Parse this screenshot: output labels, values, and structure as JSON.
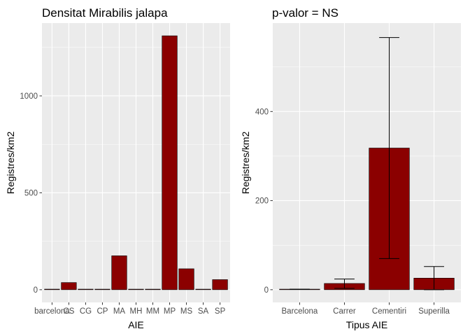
{
  "chart_data": [
    {
      "type": "bar",
      "title": "Densitat Mirabilis jalapa",
      "xlabel": "AIE",
      "ylabel": "Registres/km2",
      "ylim": [
        0,
        1310
      ],
      "yticks": [
        0,
        500,
        1000
      ],
      "ytick_labels": [
        "0",
        "500",
        "1000"
      ],
      "categories": [
        "barcelona",
        "CS",
        "CG",
        "CP",
        "MA",
        "MH",
        "MM",
        "MP",
        "MS",
        "SA",
        "SP"
      ],
      "category_labels": [
        "barcelona",
        "CS",
        "CG",
        "CP",
        "MA",
        "MH",
        "MM",
        "MP",
        "MS",
        "SA",
        "SP"
      ],
      "values": [
        3,
        37,
        3,
        1,
        175,
        0,
        0,
        1310,
        108,
        0,
        52
      ],
      "grid": true,
      "bar_color": "#8b0000"
    },
    {
      "type": "bar",
      "title": "p-valor = NS",
      "xlabel": "Tipus AIE",
      "ylabel": "Registres/km2",
      "ylim": [
        0,
        570
      ],
      "yticks": [
        0,
        200,
        400
      ],
      "ytick_labels": [
        "0",
        "200",
        "400"
      ],
      "categories": [
        "Barcelona",
        "Carrer",
        "Cementiri",
        "Superilla"
      ],
      "category_labels": [
        "Barcelona",
        "Carrer",
        "Cementiri",
        "Superilla"
      ],
      "values": [
        1,
        14,
        318,
        26
      ],
      "error_low": [
        1,
        3,
        70,
        0
      ],
      "error_high": [
        1,
        24,
        566,
        52
      ],
      "grid": true,
      "bar_color": "#8b0000"
    }
  ]
}
